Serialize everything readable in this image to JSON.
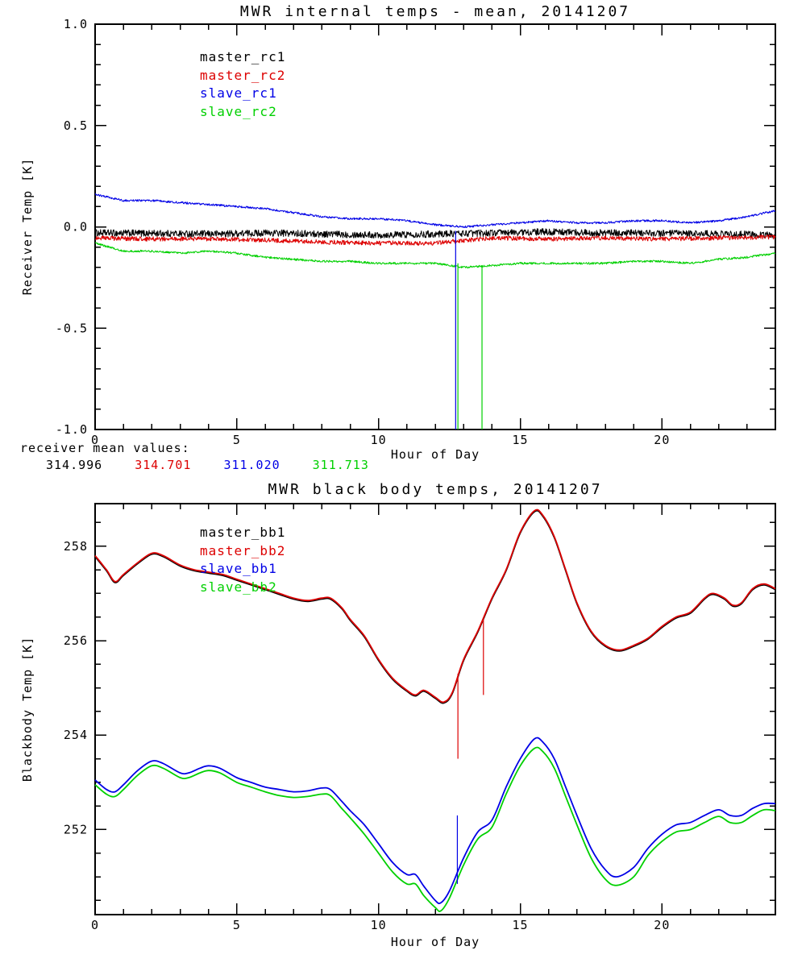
{
  "figure": {
    "background": "#ffffff"
  },
  "chart_data": [
    {
      "type": "line",
      "title": "MWR internal temps - mean, 20141207",
      "xlabel": "Hour of Day",
      "ylabel": "Receiver Temp [K]",
      "xlim": [
        0,
        24
      ],
      "ylim": [
        -1.0,
        1.0
      ],
      "grid": false,
      "xticks": {
        "major": [
          0,
          5,
          10,
          15,
          20
        ],
        "labels": [
          "0",
          "5",
          "10",
          "15",
          "20"
        ],
        "minor_step": 1
      },
      "yticks": {
        "major": [
          1.0,
          0.5,
          0.0,
          -0.5,
          -1.0
        ],
        "labels": [
          "1.0",
          "0.5",
          "0.0",
          "-0.5",
          "-1.0"
        ],
        "minor_step": 0.1
      },
      "legend_position": "upper-left-inside",
      "legend": [
        {
          "label": "master_rc1",
          "color": "#000000"
        },
        {
          "label": "master_rc2",
          "color": "#dd0000"
        },
        {
          "label": "slave_rc1",
          "color": "#0000e6"
        },
        {
          "label": "slave_rc2",
          "color": "#00d000"
        }
      ],
      "series": [
        {
          "name": "master_rc1",
          "color": "#000000",
          "noise": 0.017,
          "width": 1,
          "x": [
            0,
            2,
            4,
            6,
            8,
            10,
            12,
            14,
            16,
            18,
            20,
            22,
            24
          ],
          "y": [
            -0.03,
            -0.032,
            -0.035,
            -0.03,
            -0.035,
            -0.04,
            -0.035,
            -0.03,
            -0.025,
            -0.03,
            -0.032,
            -0.035,
            -0.04
          ]
        },
        {
          "name": "master_rc2",
          "color": "#dd0000",
          "noise": 0.011,
          "width": 1,
          "x": [
            0,
            2,
            4,
            6,
            8,
            10,
            12,
            14,
            16,
            18,
            20,
            22,
            24
          ],
          "y": [
            -0.055,
            -0.06,
            -0.06,
            -0.065,
            -0.075,
            -0.08,
            -0.08,
            -0.055,
            -0.06,
            -0.055,
            -0.06,
            -0.055,
            -0.05
          ]
        },
        {
          "name": "slave_rc1",
          "color": "#0000e6",
          "noise": 0.005,
          "width": 1,
          "x": [
            0,
            0.5,
            1,
            2,
            3,
            4,
            5,
            6,
            7,
            8,
            9,
            10,
            11,
            12,
            13,
            14,
            15,
            16,
            17,
            18,
            19,
            20,
            21,
            22,
            23,
            24
          ],
          "y": [
            0.16,
            0.145,
            0.13,
            0.13,
            0.12,
            0.11,
            0.1,
            0.09,
            0.07,
            0.05,
            0.04,
            0.04,
            0.03,
            0.01,
            0.0,
            0.01,
            0.02,
            0.03,
            0.02,
            0.02,
            0.03,
            0.03,
            0.02,
            0.03,
            0.05,
            0.08
          ]
        },
        {
          "name": "slave_rc2",
          "color": "#00d000",
          "noise": 0.005,
          "width": 1,
          "x": [
            0,
            0.5,
            1,
            2,
            3,
            4,
            5,
            6,
            7,
            8,
            9,
            10,
            11,
            12,
            13,
            14,
            15,
            16,
            17,
            18,
            19,
            20,
            21,
            22,
            23,
            24
          ],
          "y": [
            -0.08,
            -0.1,
            -0.12,
            -0.12,
            -0.13,
            -0.12,
            -0.13,
            -0.15,
            -0.16,
            -0.17,
            -0.17,
            -0.18,
            -0.18,
            -0.18,
            -0.2,
            -0.19,
            -0.18,
            -0.18,
            -0.18,
            -0.18,
            -0.17,
            -0.17,
            -0.18,
            -0.16,
            -0.15,
            -0.13
          ]
        }
      ],
      "spikes": [
        {
          "color": "#0000e6",
          "x": 12.72,
          "from": -0.02,
          "to": -1.0
        },
        {
          "color": "#00d000",
          "x": 12.8,
          "from": -0.18,
          "to": -1.0
        },
        {
          "color": "#00d000",
          "x": 13.65,
          "from": -0.19,
          "to": -1.0
        }
      ],
      "mean_values": {
        "label": "receiver mean values:",
        "items": [
          {
            "value": "314.996",
            "color": "#000000"
          },
          {
            "value": "314.701",
            "color": "#dd0000"
          },
          {
            "value": "311.020",
            "color": "#0000e6"
          },
          {
            "value": "311.713",
            "color": "#00d000"
          }
        ]
      }
    },
    {
      "type": "line",
      "title": "MWR black body temps, 20141207",
      "xlabel": "Hour of Day",
      "ylabel": "Blackbody Temp [K]",
      "xlim": [
        0,
        24
      ],
      "ylim": [
        250.2,
        258.9
      ],
      "grid": false,
      "xticks": {
        "major": [
          0,
          5,
          10,
          15,
          20
        ],
        "labels": [
          "0",
          "5",
          "10",
          "15",
          "20"
        ],
        "minor_step": 1
      },
      "yticks": {
        "major": [
          252,
          254,
          256,
          258
        ],
        "labels": [
          "252",
          "254",
          "256",
          "258"
        ],
        "minor_step": 0.5
      },
      "legend_position": "upper-left-inside",
      "legend": [
        {
          "label": "master_bb1",
          "color": "#000000"
        },
        {
          "label": "master_bb2",
          "color": "#dd0000"
        },
        {
          "label": "slave_bb1",
          "color": "#0000e6"
        },
        {
          "label": "slave_bb2",
          "color": "#00d000"
        }
      ],
      "series": [
        {
          "name": "master_bb1",
          "color": "#000000",
          "noise": 0,
          "width": 1.8,
          "x": [
            0,
            0.4,
            0.7,
            1.0,
            1.5,
            2.0,
            2.4,
            3.0,
            3.5,
            4.0,
            4.5,
            5.0,
            5.5,
            6.0,
            6.5,
            7.0,
            7.5,
            8.0,
            8.3,
            8.7,
            9.0,
            9.5,
            10.0,
            10.5,
            11.0,
            11.3,
            11.6,
            12.0,
            12.3,
            12.6,
            13.0,
            13.5,
            14.0,
            14.5,
            15.0,
            15.5,
            15.8,
            16.2,
            16.6,
            17.0,
            17.5,
            18.0,
            18.5,
            19.0,
            19.5,
            20.0,
            20.5,
            21.0,
            21.5,
            21.8,
            22.2,
            22.5,
            22.8,
            23.2,
            23.6,
            24
          ],
          "y": [
            257.78,
            257.48,
            257.23,
            257.38,
            257.63,
            257.83,
            257.78,
            257.58,
            257.48,
            257.43,
            257.38,
            257.28,
            257.18,
            257.08,
            256.98,
            256.88,
            256.83,
            256.88,
            256.88,
            256.68,
            256.43,
            256.08,
            255.58,
            255.18,
            254.93,
            254.83,
            254.93,
            254.78,
            254.68,
            254.88,
            255.58,
            256.18,
            256.88,
            257.48,
            258.28,
            258.73,
            258.63,
            258.18,
            257.48,
            256.78,
            256.18,
            255.88,
            255.78,
            255.88,
            256.03,
            256.28,
            256.48,
            256.58,
            256.88,
            256.98,
            256.88,
            256.73,
            256.78,
            257.08,
            257.18,
            257.08
          ]
        },
        {
          "name": "master_bb2",
          "color": "#dd0000",
          "noise": 0,
          "width": 1.8,
          "x": [
            0,
            0.4,
            0.7,
            1.0,
            1.5,
            2.0,
            2.4,
            3.0,
            3.5,
            4.0,
            4.5,
            5.0,
            5.5,
            6.0,
            6.5,
            7.0,
            7.5,
            8.0,
            8.3,
            8.7,
            9.0,
            9.5,
            10.0,
            10.5,
            11.0,
            11.3,
            11.6,
            12.0,
            12.3,
            12.6,
            13.0,
            13.5,
            14.0,
            14.5,
            15.0,
            15.5,
            15.8,
            16.2,
            16.6,
            17.0,
            17.5,
            18.0,
            18.5,
            19.0,
            19.5,
            20.0,
            20.5,
            21.0,
            21.5,
            21.8,
            22.2,
            22.5,
            22.8,
            23.2,
            23.6,
            24
          ],
          "y": [
            257.8,
            257.5,
            257.25,
            257.4,
            257.65,
            257.85,
            257.8,
            257.6,
            257.5,
            257.45,
            257.4,
            257.3,
            257.2,
            257.1,
            257.0,
            256.9,
            256.85,
            256.9,
            256.9,
            256.7,
            256.45,
            256.1,
            255.6,
            255.2,
            254.95,
            254.85,
            254.95,
            254.8,
            254.7,
            254.9,
            255.6,
            256.2,
            256.9,
            257.5,
            258.3,
            258.75,
            258.65,
            258.2,
            257.5,
            256.8,
            256.2,
            255.9,
            255.8,
            255.9,
            256.05,
            256.3,
            256.5,
            256.6,
            256.9,
            257.0,
            256.9,
            256.75,
            256.8,
            257.1,
            257.2,
            257.1
          ]
        },
        {
          "name": "slave_bb2",
          "color": "#00d000",
          "noise": 0,
          "width": 1.8,
          "x": [
            0,
            0.4,
            0.7,
            1.0,
            1.5,
            2.0,
            2.4,
            3.0,
            3.3,
            3.7,
            4.0,
            4.4,
            5.0,
            5.5,
            6.0,
            6.5,
            7.0,
            7.5,
            8.0,
            8.3,
            8.7,
            9.0,
            9.5,
            10.0,
            10.5,
            11.0,
            11.3,
            11.6,
            12.0,
            12.2,
            12.5,
            13.0,
            13.5,
            14.0,
            14.5,
            15.0,
            15.5,
            15.8,
            16.2,
            16.6,
            17.0,
            17.5,
            18.0,
            18.4,
            19.0,
            19.5,
            20.0,
            20.5,
            21.0,
            21.5,
            22.0,
            22.4,
            22.8,
            23.2,
            23.6,
            24
          ],
          "y": [
            252.95,
            252.75,
            252.7,
            252.85,
            253.15,
            253.35,
            253.3,
            253.1,
            253.1,
            253.2,
            253.25,
            253.2,
            253.0,
            252.9,
            252.8,
            252.72,
            252.68,
            252.7,
            252.75,
            252.72,
            252.45,
            252.25,
            251.9,
            251.5,
            251.1,
            250.85,
            250.85,
            250.6,
            250.35,
            250.28,
            250.55,
            251.25,
            251.8,
            252.05,
            252.75,
            253.35,
            253.72,
            253.65,
            253.3,
            252.7,
            252.1,
            251.4,
            250.95,
            250.82,
            251.0,
            251.45,
            251.75,
            251.95,
            252.0,
            252.15,
            252.28,
            252.15,
            252.15,
            252.3,
            252.42,
            252.4
          ]
        },
        {
          "name": "slave_bb1",
          "color": "#0000e6",
          "noise": 0,
          "width": 1.8,
          "x": [
            0,
            0.4,
            0.7,
            1.0,
            1.5,
            2.0,
            2.4,
            3.0,
            3.3,
            3.7,
            4.0,
            4.4,
            5.0,
            5.5,
            6.0,
            6.5,
            7.0,
            7.5,
            8.0,
            8.3,
            8.7,
            9.0,
            9.5,
            10.0,
            10.5,
            11.0,
            11.3,
            11.6,
            12.0,
            12.2,
            12.5,
            13.0,
            13.5,
            14.0,
            14.5,
            15.0,
            15.5,
            15.8,
            16.2,
            16.6,
            17.0,
            17.5,
            18.0,
            18.4,
            19.0,
            19.5,
            20.0,
            20.5,
            21.0,
            21.5,
            22.0,
            22.4,
            22.8,
            23.2,
            23.6,
            24
          ],
          "y": [
            253.05,
            252.85,
            252.8,
            252.95,
            253.25,
            253.45,
            253.4,
            253.2,
            253.2,
            253.3,
            253.35,
            253.3,
            253.1,
            253.0,
            252.9,
            252.85,
            252.8,
            252.82,
            252.88,
            252.85,
            252.6,
            252.4,
            252.1,
            251.7,
            251.3,
            251.05,
            251.05,
            250.8,
            250.5,
            250.45,
            250.7,
            251.4,
            251.95,
            252.2,
            252.9,
            253.5,
            253.92,
            253.85,
            253.5,
            252.9,
            252.3,
            251.6,
            251.15,
            251.0,
            251.2,
            251.6,
            251.9,
            252.1,
            252.15,
            252.3,
            252.42,
            252.3,
            252.3,
            252.45,
            252.55,
            252.55
          ]
        }
      ],
      "spikes": [
        {
          "color": "#dd0000",
          "x": 12.8,
          "from": 255.3,
          "to": 253.5
        },
        {
          "color": "#dd0000",
          "x": 13.7,
          "from": 256.45,
          "to": 254.85
        },
        {
          "color": "#0000e6",
          "x": 12.78,
          "from": 252.3,
          "to": 250.85
        }
      ]
    }
  ]
}
